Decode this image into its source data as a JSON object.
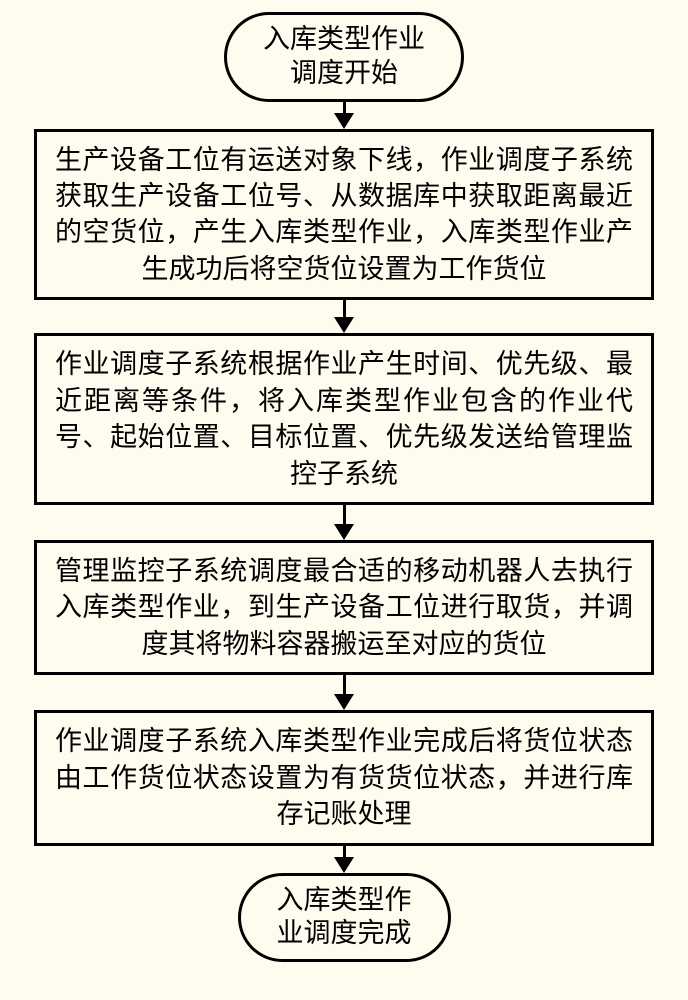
{
  "type": "flowchart",
  "background_color": "#fffcef",
  "border_color": "#000000",
  "border_width": 3,
  "font_family": "SimSun",
  "font_size": 27,
  "text_color": "#000000",
  "arrow": {
    "line_width": 3,
    "head_width": 20,
    "head_height": 16
  },
  "nodes": [
    {
      "id": "start",
      "shape": "terminator",
      "text": "入库类型作业\n调度开始"
    },
    {
      "id": "step1",
      "shape": "process",
      "text": "生产设备工位有运送对象下线，作业调度子系统获取生产设备工位号、从数据库中获取距离最近的空货位，产生入库类型作业，入库类型作业产生成功后将空货位设置为工作货位"
    },
    {
      "id": "step2",
      "shape": "process",
      "text": "作业调度子系统根据作业产生时间、优先级、最近距离等条件，将入库类型作业包含的作业代号、起始位置、目标位置、优先级发送给管理监控子系统"
    },
    {
      "id": "step3",
      "shape": "process",
      "text": "管理监控子系统调度最合适的移动机器人去执行入库类型作业，到生产设备工位进行取货，并调度其将物料容器搬运至对应的货位"
    },
    {
      "id": "step4",
      "shape": "process",
      "text": "作业调度子系统入库类型作业完成后将货位状态由工作货位状态设置为有货货位状态，并进行库存记账处理"
    },
    {
      "id": "end",
      "shape": "terminator",
      "text": "入库类型作\n业调度完成"
    }
  ],
  "edges": [
    {
      "from": "start",
      "to": "step1",
      "gap": 28
    },
    {
      "from": "step1",
      "to": "step2",
      "gap": 34
    },
    {
      "from": "step2",
      "to": "step3",
      "gap": 36
    },
    {
      "from": "step3",
      "to": "step4",
      "gap": 36
    },
    {
      "from": "step4",
      "to": "end",
      "gap": 28
    }
  ]
}
